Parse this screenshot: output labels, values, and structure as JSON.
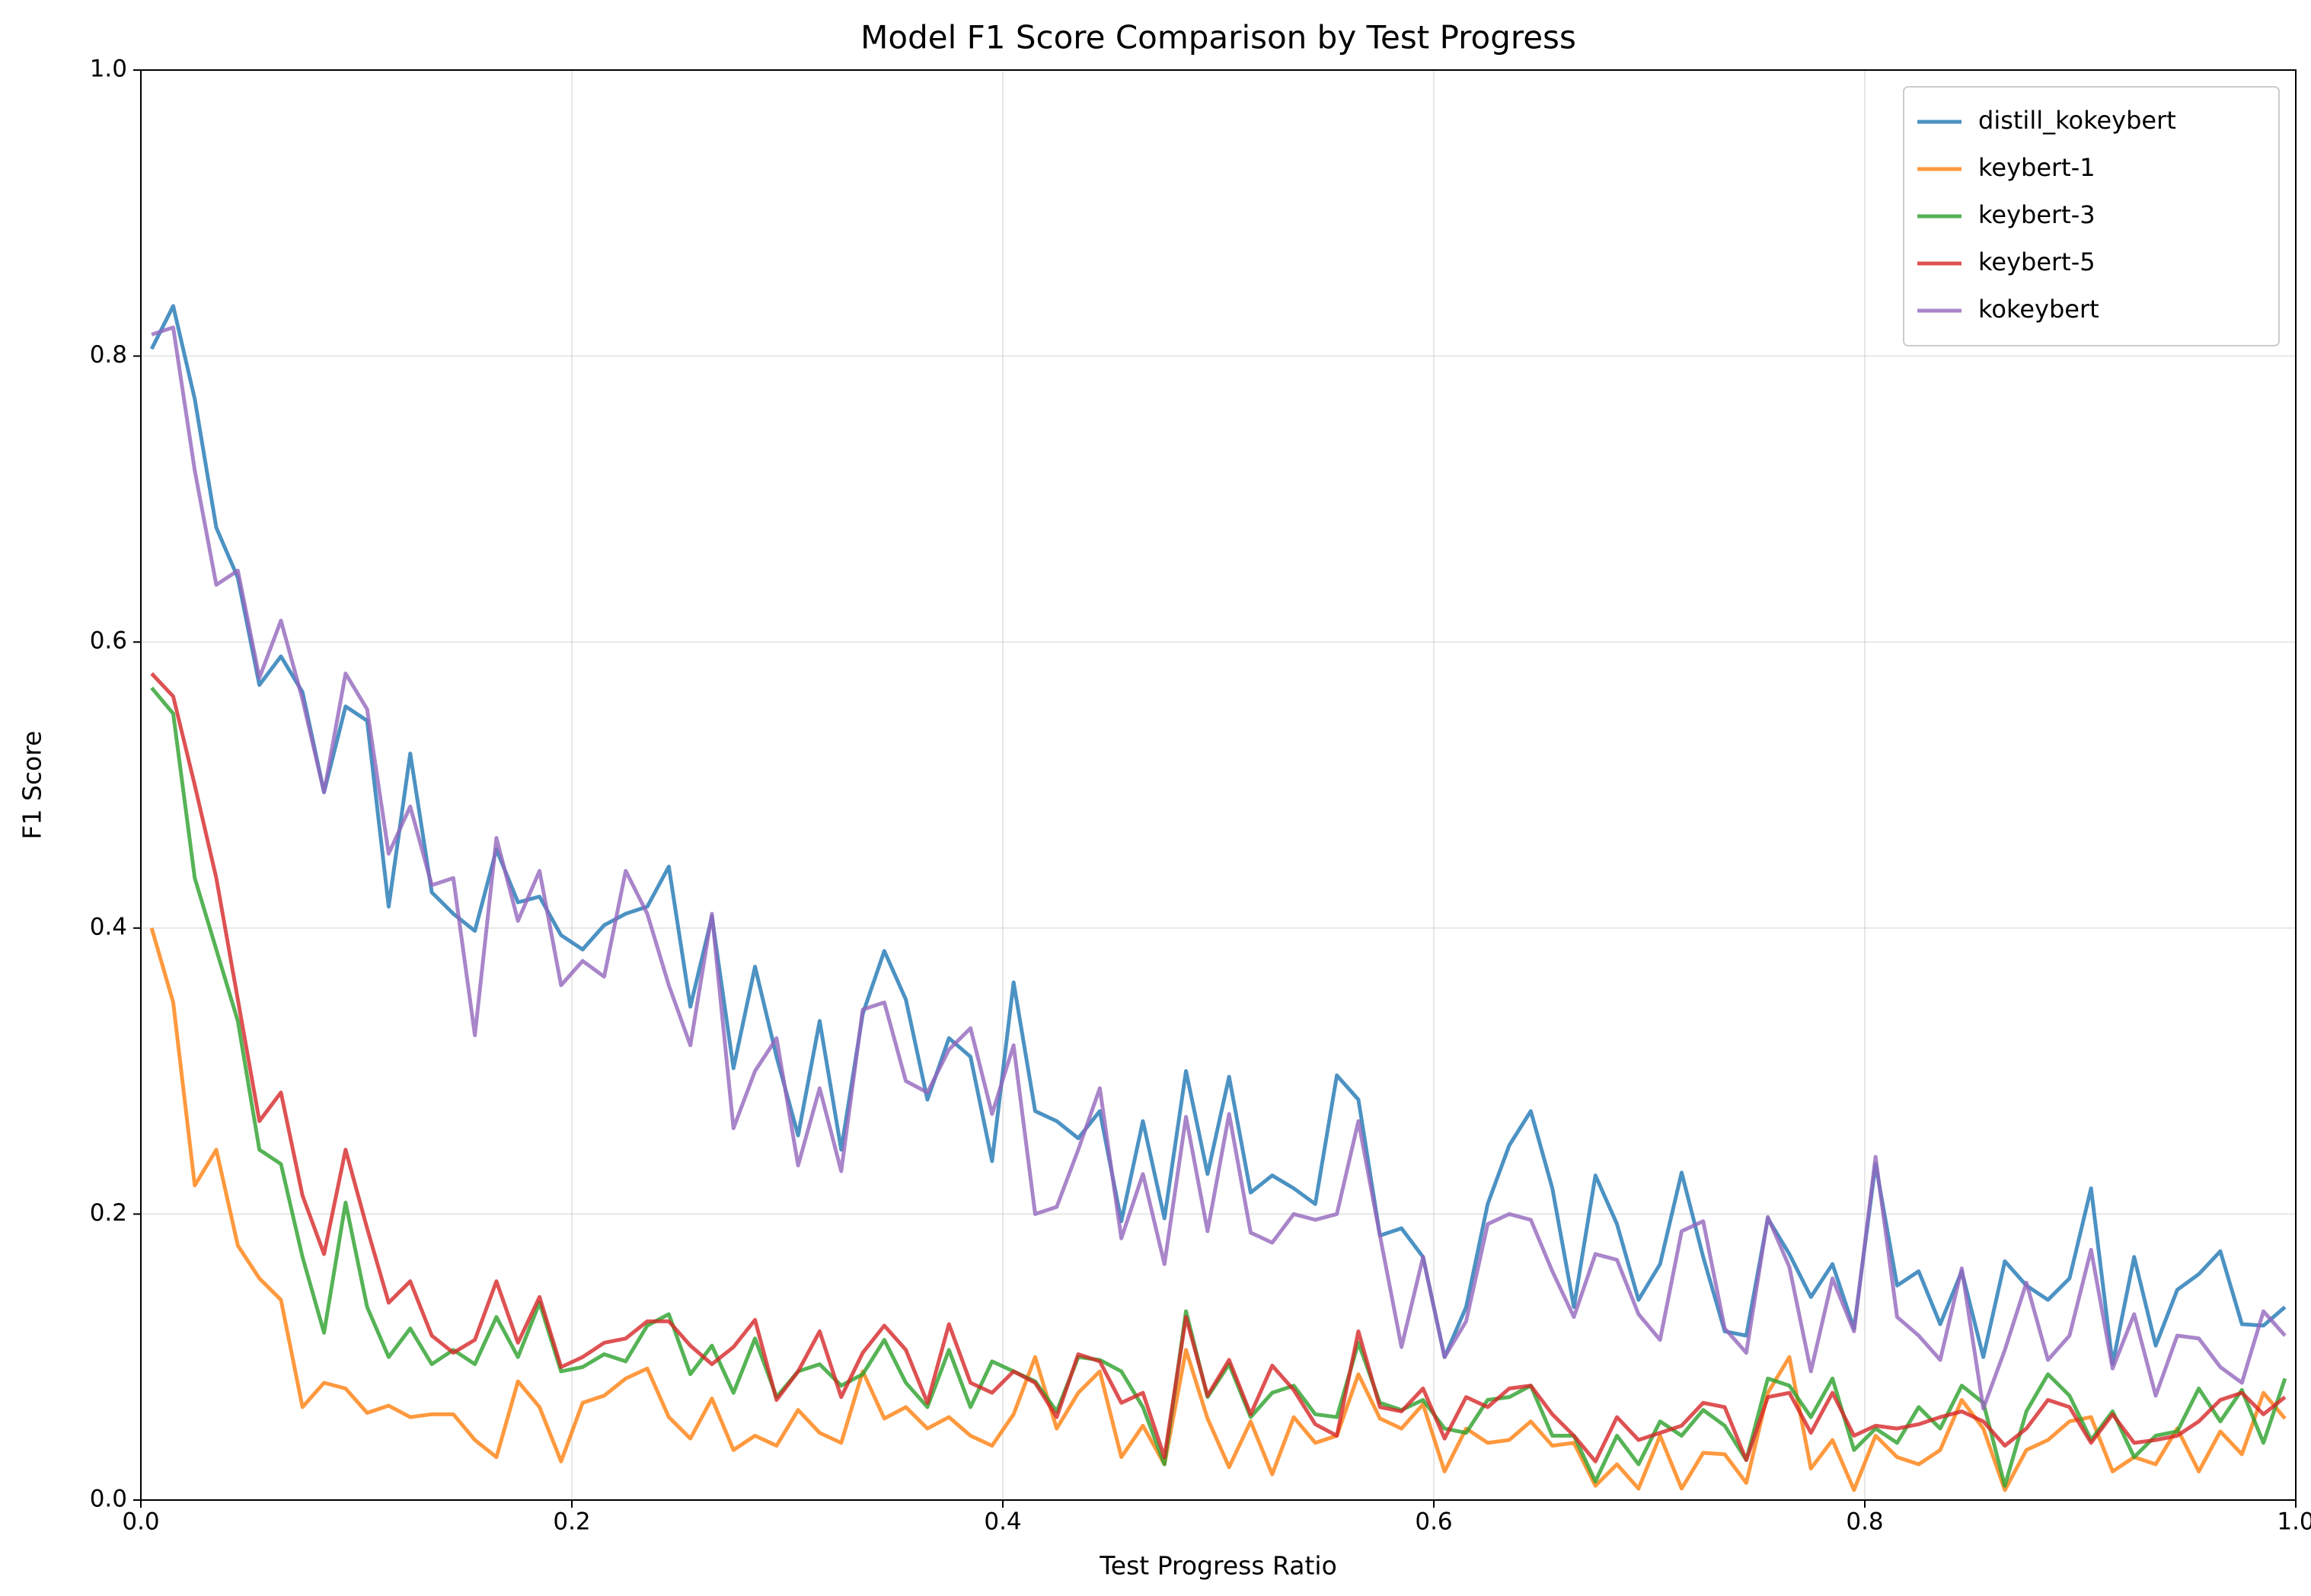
{
  "chart_data": {
    "type": "line",
    "title": "Model F1 Score Comparison by Test Progress",
    "xlabel": "Test Progress Ratio",
    "ylabel": "F1 Score",
    "xlim": [
      0,
      1
    ],
    "ylim": [
      0,
      1
    ],
    "xticks": [
      {
        "value": 0,
        "label": "0.0"
      },
      0.2,
      0.4,
      0.6,
      0.8,
      {
        "value": 1,
        "label": "1.0"
      }
    ],
    "yticks": [
      {
        "value": 0,
        "label": "0.0"
      },
      0.2,
      0.4,
      0.6,
      0.8,
      {
        "value": 1,
        "label": "1.0"
      }
    ],
    "grid": true,
    "legend": "upper right",
    "x": [
      0.005,
      0.015,
      0.025,
      0.035,
      0.045,
      0.055,
      0.065,
      0.075,
      0.085,
      0.095,
      0.105,
      0.115,
      0.125,
      0.135,
      0.145,
      0.155,
      0.165,
      0.175,
      0.185,
      0.195,
      0.205,
      0.215,
      0.225,
      0.235,
      0.245,
      0.255,
      0.265,
      0.275,
      0.285,
      0.295,
      0.305,
      0.315,
      0.325,
      0.335,
      0.345,
      0.355,
      0.365,
      0.375,
      0.385,
      0.395,
      0.405,
      0.415,
      0.425,
      0.435,
      0.445,
      0.455,
      0.465,
      0.475,
      0.485,
      0.495,
      0.505,
      0.515,
      0.525,
      0.535,
      0.545,
      0.555,
      0.565,
      0.575,
      0.585,
      0.595,
      0.605,
      0.615,
      0.625,
      0.635,
      0.645,
      0.655,
      0.665,
      0.675,
      0.685,
      0.695,
      0.705,
      0.715,
      0.725,
      0.735,
      0.745,
      0.755,
      0.765,
      0.775,
      0.785,
      0.795,
      0.805,
      0.815,
      0.825,
      0.835,
      0.845,
      0.855,
      0.865,
      0.875,
      0.885,
      0.895,
      0.905,
      0.915,
      0.925,
      0.935,
      0.945,
      0.955,
      0.965,
      0.975,
      0.985,
      0.995
    ],
    "series": [
      {
        "name": "distill_kokeybert",
        "color": "#1f77b4",
        "values": [
          0.805,
          0.835,
          0.77,
          0.68,
          0.645,
          0.57,
          0.59,
          0.565,
          0.495,
          0.555,
          0.545,
          0.415,
          0.522,
          0.425,
          0.41,
          0.398,
          0.455,
          0.418,
          0.422,
          0.395,
          0.385,
          0.402,
          0.41,
          0.415,
          0.443,
          0.345,
          0.408,
          0.302,
          0.373,
          0.31,
          0.255,
          0.335,
          0.245,
          0.34,
          0.384,
          0.35,
          0.28,
          0.323,
          0.31,
          0.237,
          0.362,
          0.272,
          0.265,
          0.253,
          0.272,
          0.195,
          0.265,
          0.197,
          0.3,
          0.228,
          0.296,
          0.215,
          0.227,
          0.218,
          0.207,
          0.297,
          0.28,
          0.185,
          0.19,
          0.17,
          0.1,
          0.135,
          0.207,
          0.248,
          0.272,
          0.218,
          0.135,
          0.227,
          0.193,
          0.14,
          0.165,
          0.229,
          0.17,
          0.118,
          0.115,
          0.197,
          0.172,
          0.142,
          0.165,
          0.12,
          0.235,
          0.15,
          0.16,
          0.123,
          0.16,
          0.1,
          0.167,
          0.15,
          0.14,
          0.155,
          0.218,
          0.095,
          0.17,
          0.108,
          0.147,
          0.158,
          0.174,
          0.123,
          0.122,
          0.135
        ]
      },
      {
        "name": "keybert-1",
        "color": "#ff7f0e",
        "values": [
          0.4,
          0.348,
          0.22,
          0.245,
          0.178,
          0.155,
          0.14,
          0.065,
          0.082,
          0.078,
          0.061,
          0.066,
          0.058,
          0.06,
          0.06,
          0.042,
          0.03,
          0.083,
          0.065,
          0.027,
          0.068,
          0.073,
          0.085,
          0.092,
          0.058,
          0.043,
          0.071,
          0.035,
          0.045,
          0.038,
          0.063,
          0.047,
          0.04,
          0.09,
          0.057,
          0.065,
          0.05,
          0.058,
          0.045,
          0.038,
          0.06,
          0.1,
          0.05,
          0.075,
          0.09,
          0.03,
          0.052,
          0.025,
          0.105,
          0.057,
          0.023,
          0.055,
          0.018,
          0.058,
          0.04,
          0.045,
          0.088,
          0.057,
          0.05,
          0.067,
          0.02,
          0.05,
          0.04,
          0.042,
          0.055,
          0.038,
          0.04,
          0.01,
          0.025,
          0.008,
          0.045,
          0.008,
          0.033,
          0.032,
          0.012,
          0.075,
          0.1,
          0.022,
          0.042,
          0.007,
          0.045,
          0.03,
          0.025,
          0.035,
          0.07,
          0.05,
          0.007,
          0.035,
          0.042,
          0.055,
          0.058,
          0.02,
          0.03,
          0.025,
          0.05,
          0.02,
          0.048,
          0.032,
          0.075,
          0.057
        ]
      },
      {
        "name": "keybert-3",
        "color": "#2ca02c",
        "values": [
          0.568,
          0.55,
          0.435,
          0.385,
          0.335,
          0.245,
          0.235,
          0.17,
          0.117,
          0.208,
          0.135,
          0.1,
          0.12,
          0.095,
          0.105,
          0.095,
          0.128,
          0.1,
          0.138,
          0.09,
          0.093,
          0.102,
          0.097,
          0.122,
          0.13,
          0.088,
          0.108,
          0.075,
          0.113,
          0.072,
          0.09,
          0.095,
          0.08,
          0.088,
          0.112,
          0.082,
          0.065,
          0.105,
          0.065,
          0.097,
          0.09,
          0.083,
          0.062,
          0.1,
          0.098,
          0.09,
          0.065,
          0.025,
          0.132,
          0.072,
          0.095,
          0.058,
          0.075,
          0.08,
          0.06,
          0.058,
          0.11,
          0.068,
          0.063,
          0.07,
          0.05,
          0.047,
          0.07,
          0.072,
          0.08,
          0.045,
          0.045,
          0.013,
          0.045,
          0.025,
          0.055,
          0.045,
          0.063,
          0.052,
          0.028,
          0.085,
          0.08,
          0.058,
          0.085,
          0.035,
          0.05,
          0.04,
          0.065,
          0.05,
          0.08,
          0.068,
          0.01,
          0.062,
          0.088,
          0.073,
          0.042,
          0.062,
          0.03,
          0.045,
          0.048,
          0.078,
          0.055,
          0.077,
          0.04,
          0.085
        ]
      },
      {
        "name": "keybert-5",
        "color": "#d62728",
        "values": [
          0.578,
          0.562,
          0.5,
          0.435,
          0.35,
          0.265,
          0.285,
          0.213,
          0.172,
          0.245,
          0.19,
          0.138,
          0.153,
          0.115,
          0.103,
          0.112,
          0.153,
          0.11,
          0.142,
          0.093,
          0.1,
          0.11,
          0.113,
          0.125,
          0.125,
          0.108,
          0.095,
          0.107,
          0.126,
          0.07,
          0.09,
          0.118,
          0.072,
          0.103,
          0.122,
          0.105,
          0.068,
          0.123,
          0.082,
          0.075,
          0.09,
          0.082,
          0.058,
          0.102,
          0.097,
          0.068,
          0.075,
          0.03,
          0.128,
          0.073,
          0.098,
          0.06,
          0.094,
          0.077,
          0.053,
          0.045,
          0.118,
          0.065,
          0.062,
          0.078,
          0.043,
          0.072,
          0.065,
          0.078,
          0.08,
          0.06,
          0.045,
          0.027,
          0.058,
          0.042,
          0.047,
          0.052,
          0.068,
          0.065,
          0.028,
          0.072,
          0.075,
          0.047,
          0.075,
          0.045,
          0.052,
          0.05,
          0.053,
          0.058,
          0.062,
          0.055,
          0.038,
          0.05,
          0.07,
          0.065,
          0.04,
          0.06,
          0.04,
          0.042,
          0.045,
          0.055,
          0.07,
          0.075,
          0.06,
          0.072
        ]
      },
      {
        "name": "kokeybert",
        "color": "#9467bd",
        "values": [
          0.815,
          0.82,
          0.72,
          0.64,
          0.65,
          0.575,
          0.615,
          0.56,
          0.495,
          0.578,
          0.553,
          0.452,
          0.485,
          0.43,
          0.435,
          0.325,
          0.463,
          0.405,
          0.44,
          0.36,
          0.377,
          0.366,
          0.44,
          0.41,
          0.36,
          0.318,
          0.41,
          0.26,
          0.3,
          0.323,
          0.234,
          0.288,
          0.23,
          0.343,
          0.348,
          0.293,
          0.285,
          0.315,
          0.33,
          0.27,
          0.318,
          0.2,
          0.205,
          0.245,
          0.288,
          0.183,
          0.228,
          0.165,
          0.268,
          0.188,
          0.27,
          0.187,
          0.18,
          0.2,
          0.196,
          0.2,
          0.265,
          0.185,
          0.107,
          0.17,
          0.1,
          0.125,
          0.193,
          0.2,
          0.196,
          0.16,
          0.128,
          0.172,
          0.168,
          0.13,
          0.112,
          0.188,
          0.195,
          0.12,
          0.103,
          0.198,
          0.163,
          0.09,
          0.155,
          0.118,
          0.24,
          0.128,
          0.115,
          0.098,
          0.162,
          0.064,
          0.105,
          0.152,
          0.098,
          0.115,
          0.175,
          0.092,
          0.13,
          0.073,
          0.115,
          0.113,
          0.093,
          0.082,
          0.132,
          0.115
        ]
      }
    ]
  }
}
